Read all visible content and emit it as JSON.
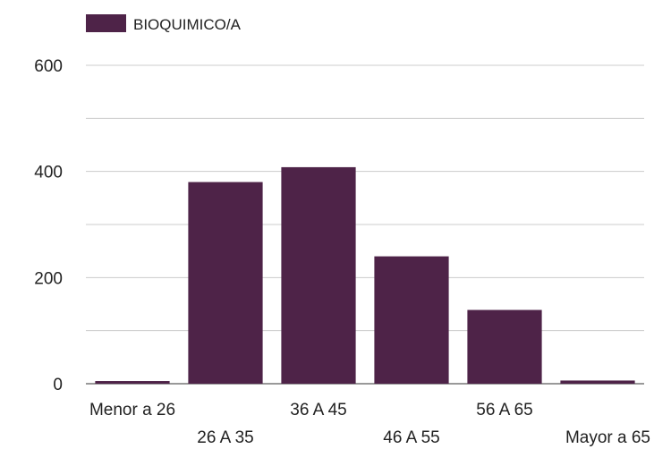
{
  "chart_data": {
    "type": "bar",
    "title": "",
    "xlabel": "",
    "ylabel": "",
    "categories": [
      "Menor a 26",
      "26 A 35",
      "36 A 45",
      "46 A 55",
      "56 A 65",
      "Mayor a 65"
    ],
    "series": [
      {
        "name": "BIOQUIMICO/A",
        "values": [
          5,
          380,
          408,
          240,
          139,
          6
        ],
        "color": "#4e2348"
      }
    ],
    "ylim": [
      0,
      600
    ],
    "yticks": [
      0,
      200,
      400,
      600
    ],
    "grid": true,
    "legend": "top-left"
  }
}
